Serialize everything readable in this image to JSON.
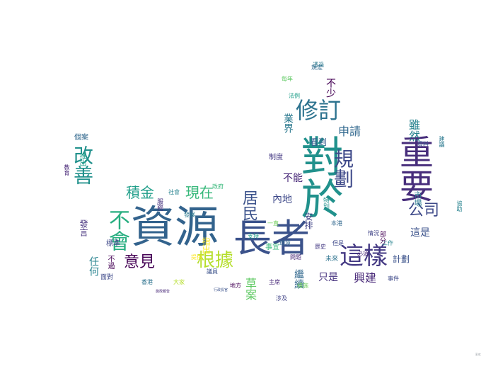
{
  "wordcloud": {
    "words": [
      {
        "text": "資源",
        "color": "#33638d"
      },
      {
        "text": "長者",
        "color": "#3b528b"
      },
      {
        "text": "對於",
        "color": "#21918c"
      },
      {
        "text": "重要",
        "color": "#472d7b"
      },
      {
        "text": "修訂",
        "color": "#2c728e"
      },
      {
        "text": "規劃",
        "color": "#3e4989"
      },
      {
        "text": "這樣",
        "color": "#443983"
      },
      {
        "text": "不會",
        "color": "#28ae80"
      },
      {
        "text": "改善",
        "color": "#21918c"
      },
      {
        "text": "根據",
        "color": "#b5de2b"
      },
      {
        "text": "意見",
        "color": "#440154"
      },
      {
        "text": "積金",
        "color": "#1f9e89"
      },
      {
        "text": "現在",
        "color": "#35b779"
      },
      {
        "text": "居民",
        "color": "#3b528b"
      },
      {
        "text": "公司",
        "color": "#3e4989"
      },
      {
        "text": "申請",
        "color": "#31688e"
      },
      {
        "text": "雖然",
        "color": "#26828e"
      },
      {
        "text": "興建",
        "color": "#482878"
      },
      {
        "text": "這是",
        "color": "#3b528b"
      },
      {
        "text": "繼續",
        "color": "#31688e"
      },
      {
        "text": "只是",
        "color": "#46327e"
      },
      {
        "text": "業界",
        "color": "#2a788e"
      },
      {
        "text": "不少",
        "color": "#440154"
      },
      {
        "text": "草案",
        "color": "#5ec962"
      },
      {
        "text": "不能",
        "color": "#482878"
      },
      {
        "text": "內地",
        "color": "#3e4989"
      },
      {
        "text": "看到",
        "color": "#365c8d"
      },
      {
        "text": "任何",
        "color": "#26828e"
      },
      {
        "text": "發言",
        "color": "#46327e"
      },
      {
        "text": "指出",
        "color": "#fde725"
      },
      {
        "text": "安排",
        "color": "#414487"
      },
      {
        "text": "計劃",
        "color": "#3b528b"
      },
      {
        "text": "不過",
        "color": "#440154"
      },
      {
        "text": "市場",
        "color": "#2a788e"
      },
      {
        "text": "推出",
        "color": "#1f9e89"
      },
      {
        "text": "個案",
        "color": "#31688e"
      },
      {
        "text": "教育",
        "color": "#482878"
      },
      {
        "text": "標準",
        "color": "#3e4989"
      },
      {
        "text": "事宜",
        "color": "#35b779"
      },
      {
        "text": "但是",
        "color": "#3e4989"
      },
      {
        "text": "歷史",
        "color": "#443983"
      },
      {
        "text": "未來",
        "color": "#2c728e"
      },
      {
        "text": "一直",
        "color": "#6ece58"
      },
      {
        "text": "本港",
        "color": "#31688e"
      },
      {
        "text": "情況",
        "color": "#414487"
      },
      {
        "text": "工作",
        "color": "#26828e"
      },
      {
        "text": "必須",
        "color": "#482878"
      },
      {
        "text": "資料",
        "color": "#3b528b"
      },
      {
        "text": "建議",
        "color": "#2a788e"
      },
      {
        "text": "部分",
        "color": "#440154"
      },
      {
        "text": "面對",
        "color": "#3e4989"
      },
      {
        "text": "支持",
        "color": "#1f9e89"
      },
      {
        "text": "提供",
        "color": "#fde725"
      },
      {
        "text": "環境",
        "color": "#31688e"
      },
      {
        "text": "問題",
        "color": "#482878"
      },
      {
        "text": "政府",
        "color": "#35b779"
      },
      {
        "text": "社會",
        "color": "#26828e"
      },
      {
        "text": "服務",
        "color": "#46327e"
      },
      {
        "text": "發展",
        "color": "#2a788e"
      },
      {
        "text": "地方",
        "color": "#440154"
      },
      {
        "text": "特別",
        "color": "#21918c"
      },
      {
        "text": "制度",
        "color": "#443983"
      },
      {
        "text": "大家",
        "color": "#b5de2b"
      },
      {
        "text": "香港",
        "color": "#2c728e"
      },
      {
        "text": "議員",
        "color": "#3b528b"
      },
      {
        "text": "主席",
        "color": "#482878"
      },
      {
        "text": "法例",
        "color": "#1f9e89"
      },
      {
        "text": "規定",
        "color": "#31688e"
      },
      {
        "text": "措施",
        "color": "#6ece58"
      },
      {
        "text": "涉及",
        "color": "#414487"
      },
      {
        "text": "事件",
        "color": "#3e4989"
      },
      {
        "text": "協助",
        "color": "#26828e"
      },
      {
        "text": "每年",
        "color": "#5ec962"
      },
      {
        "text": "透過",
        "color": "#2a788e"
      },
      {
        "text": "施政報告",
        "color": "#482878"
      },
      {
        "text": "行政長官",
        "color": "#3b528b"
      }
    ],
    "watermark": "彩虹"
  }
}
